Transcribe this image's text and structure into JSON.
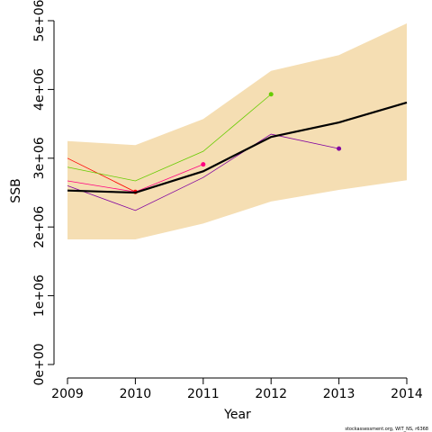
{
  "chart_data": {
    "type": "line",
    "x_label": "Year",
    "y_label": "SSB",
    "footnote": "stockassessment.org, WIT_NS, r6368",
    "x": [
      2009,
      2010,
      2011,
      2012,
      2013,
      2014
    ],
    "xlim": [
      2009,
      2014
    ],
    "xticks": [
      2009,
      2010,
      2011,
      2012,
      2013,
      2014
    ],
    "ylim": [
      0,
      5000000
    ],
    "yticks": [
      {
        "value": 0,
        "label": "0e+00"
      },
      {
        "value": 1000000,
        "label": "1e+06"
      },
      {
        "value": 2000000,
        "label": "2e+06"
      },
      {
        "value": 3000000,
        "label": "3e+06"
      },
      {
        "value": 4000000,
        "label": "4e+06"
      },
      {
        "value": 5000000,
        "label": "5e+06"
      }
    ],
    "band": {
      "color": "#f5deb3",
      "upper": [
        3250000,
        3190000,
        3570000,
        4270000,
        4500000,
        4960000
      ],
      "lower": [
        1820000,
        1820000,
        2050000,
        2370000,
        2540000,
        2680000
      ]
    },
    "series": [
      {
        "color": "#ff0000",
        "width": 0.8,
        "values": [
          3000000,
          2510000,
          null,
          null,
          null,
          null
        ]
      },
      {
        "color": "#ff0080",
        "width": 0.8,
        "values": [
          2670000,
          2510000,
          2910000,
          null,
          null,
          null
        ]
      },
      {
        "color": "#66cc00",
        "width": 0.8,
        "values": [
          2870000,
          2670000,
          3100000,
          3930000,
          null,
          null
        ]
      },
      {
        "color": "#8000a0",
        "width": 0.8,
        "values": [
          2600000,
          2240000,
          2720000,
          3350000,
          3140000,
          null
        ]
      },
      {
        "color": "#000000",
        "width": 2.2,
        "values": [
          2530000,
          2500000,
          2810000,
          3310000,
          3520000,
          3810000
        ]
      }
    ]
  }
}
